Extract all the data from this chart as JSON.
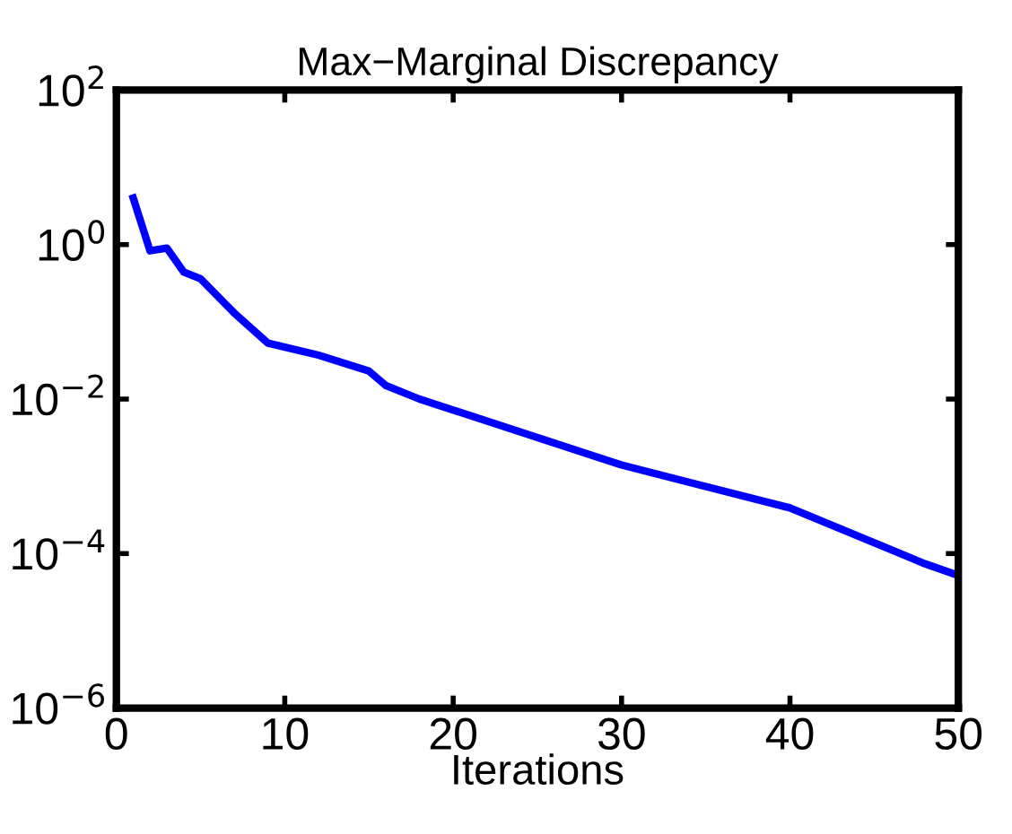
{
  "chart_data": {
    "type": "line",
    "title": "Max−Marginal Discrepancy",
    "xlabel": "Iterations",
    "x": [
      1,
      2,
      3,
      4,
      5,
      7,
      9,
      12,
      15,
      16,
      18,
      30,
      40,
      48,
      50
    ],
    "series": [
      {
        "color": "#0000ff",
        "values": [
          4,
          0.83,
          0.9,
          0.44,
          0.36,
          0.13,
          0.053,
          0.037,
          0.023,
          0.015,
          0.01,
          0.0014,
          0.00039,
          7.4e-05,
          5.2e-05
        ]
      }
    ],
    "log": "y",
    "xlim": [
      0,
      50
    ],
    "xticks": [
      0,
      10,
      20,
      30,
      40,
      50
    ],
    "ylim": [
      1e-06,
      100
    ],
    "yticks": [
      {
        "value": 1e-06,
        "label": "10$^{−6}$"
      },
      {
        "value": 0.0001,
        "label": "10$^{−4}$"
      },
      {
        "value": 0.01,
        "label": "10$^{−2}$"
      },
      {
        "value": 1,
        "label": "10$^{0}$"
      },
      {
        "value": 100,
        "label": "10$^{2}$"
      }
    ],
    "grid": false,
    "legend": false,
    "marker": "none",
    "line_style": "solid"
  }
}
